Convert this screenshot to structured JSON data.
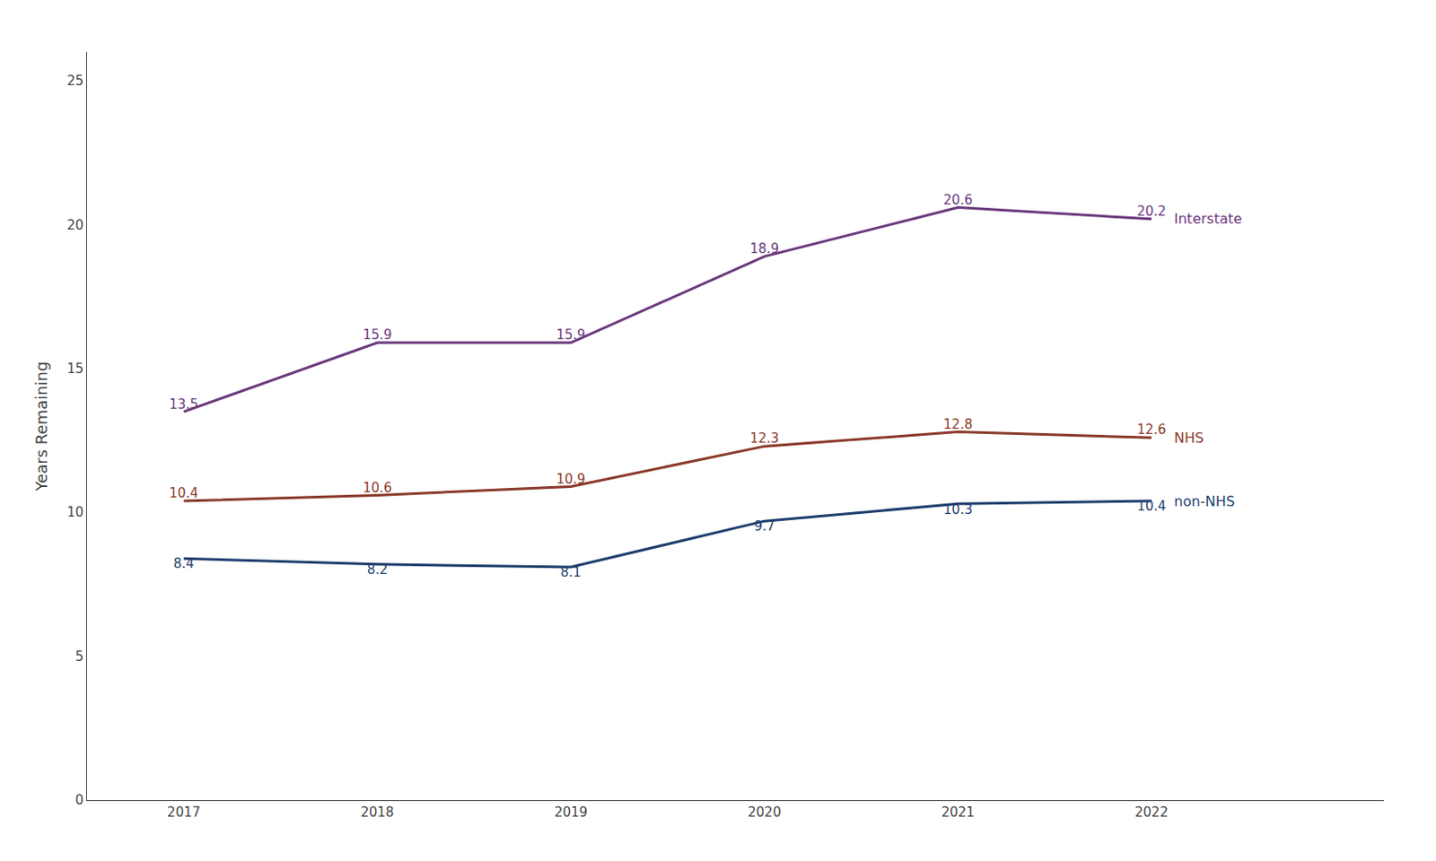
{
  "chart_data": {
    "type": "line",
    "x": [
      2017,
      2018,
      2019,
      2020,
      2021,
      2022
    ],
    "series": [
      {
        "name": "Interstate",
        "color": "#6B3A7D",
        "values": [
          13.5,
          15.9,
          15.9,
          18.9,
          20.6,
          20.2
        ]
      },
      {
        "name": "NHS",
        "color": "#8B3A2A",
        "values": [
          10.4,
          10.6,
          10.9,
          12.3,
          12.8,
          12.6
        ]
      },
      {
        "name": "non-NHS",
        "color": "#1F3F6E",
        "values": [
          8.4,
          8.2,
          8.1,
          9.7,
          10.3,
          10.4
        ]
      }
    ],
    "y_label": "Years Remaining",
    "xlim": [
      2016.5,
      2023.2
    ],
    "xticks": [
      2017,
      2018,
      2019,
      2020,
      2021,
      2022
    ],
    "ylim": [
      0,
      26
    ],
    "yticks": [
      0,
      5,
      10,
      15,
      20,
      25
    ],
    "grid": false,
    "data_labels": true
  }
}
